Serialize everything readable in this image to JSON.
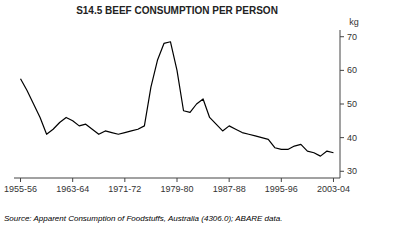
{
  "chart_data": {
    "type": "line",
    "title": "S14.5   BEEF CONSUMPTION PER PERSON",
    "y_label": "kg",
    "source": "Source: Apparent Consumption of Foodstuffs, Australia (4306.0); ABARE data.",
    "categories": [
      "1955-56",
      null,
      null,
      null,
      null,
      null,
      null,
      null,
      "1963-64",
      null,
      null,
      null,
      null,
      null,
      null,
      null,
      "1971-72",
      null,
      null,
      null,
      null,
      null,
      null,
      null,
      "1979-80",
      null,
      null,
      null,
      null,
      null,
      null,
      null,
      "1987-88",
      null,
      null,
      null,
      null,
      null,
      null,
      null,
      "1995-96",
      null,
      null,
      null,
      null,
      null,
      null,
      null,
      "2003-04"
    ],
    "values": [
      57.5,
      54.0,
      50.0,
      46.0,
      41.0,
      42.5,
      44.5,
      46.0,
      45.0,
      43.5,
      44.0,
      42.5,
      41.0,
      42.0,
      41.5,
      41.0,
      41.5,
      42.0,
      42.5,
      43.5,
      55.0,
      63.0,
      68.0,
      68.5,
      60.0,
      48.0,
      47.5,
      50.0,
      51.5,
      46.0,
      44.0,
      42.0,
      43.5,
      42.5,
      41.5,
      41.0,
      40.5,
      40.0,
      39.5,
      37.0,
      36.5,
      36.5,
      37.5,
      38.0,
      36.0,
      35.5,
      34.5,
      36.0,
      35.5
    ],
    "color": "#000000",
    "ylim": [
      28,
      72
    ],
    "yticks": [
      30,
      40,
      50,
      60,
      70
    ]
  }
}
